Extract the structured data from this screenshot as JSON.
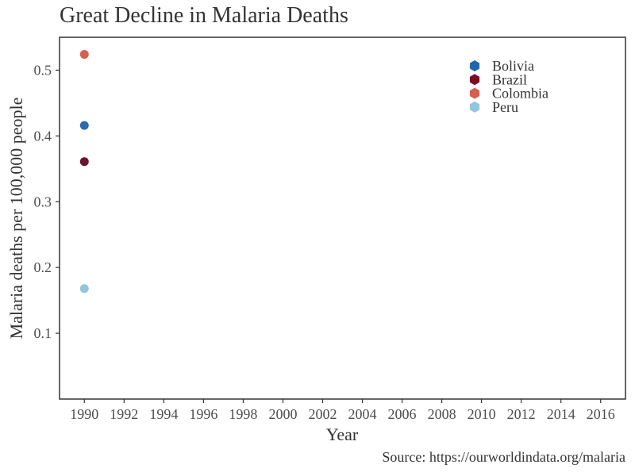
{
  "chart_data": {
    "type": "scatter",
    "title": "Great Decline in Malaria Deaths",
    "xlabel": "Year",
    "ylabel": "Malaria deaths per 100,000 people",
    "caption": "Source: https://ourworldindata.org/malaria",
    "xlim": [
      1988.75,
      2017.25
    ],
    "ylim": [
      0.0,
      0.55
    ],
    "x_ticks": [
      1990,
      1992,
      1994,
      1996,
      1998,
      2000,
      2002,
      2004,
      2006,
      2008,
      2010,
      2012,
      2014,
      2016
    ],
    "y_ticks": [
      0.1,
      0.2,
      0.3,
      0.4,
      0.5
    ],
    "y_tick_labels": [
      "0.1",
      "0.2",
      "0.3",
      "0.4",
      "0.5"
    ],
    "grid": false,
    "legend_position": "top-right",
    "series": [
      {
        "name": "Bolivia",
        "color": "#2b6aaf",
        "points": [
          {
            "x": 1990,
            "y": 0.416
          }
        ]
      },
      {
        "name": "Brazil",
        "color": "#6b1530",
        "points": [
          {
            "x": 1990,
            "y": 0.361
          }
        ]
      },
      {
        "name": "Colombia",
        "color": "#d6604d",
        "points": [
          {
            "x": 1990,
            "y": 0.524
          }
        ]
      },
      {
        "name": "Peru",
        "color": "#92c5de",
        "points": [
          {
            "x": 1990,
            "y": 0.168
          }
        ]
      }
    ],
    "legend_colors": [
      "#2166ac",
      "#7b0d27",
      "#d6604d",
      "#92c5de"
    ]
  }
}
